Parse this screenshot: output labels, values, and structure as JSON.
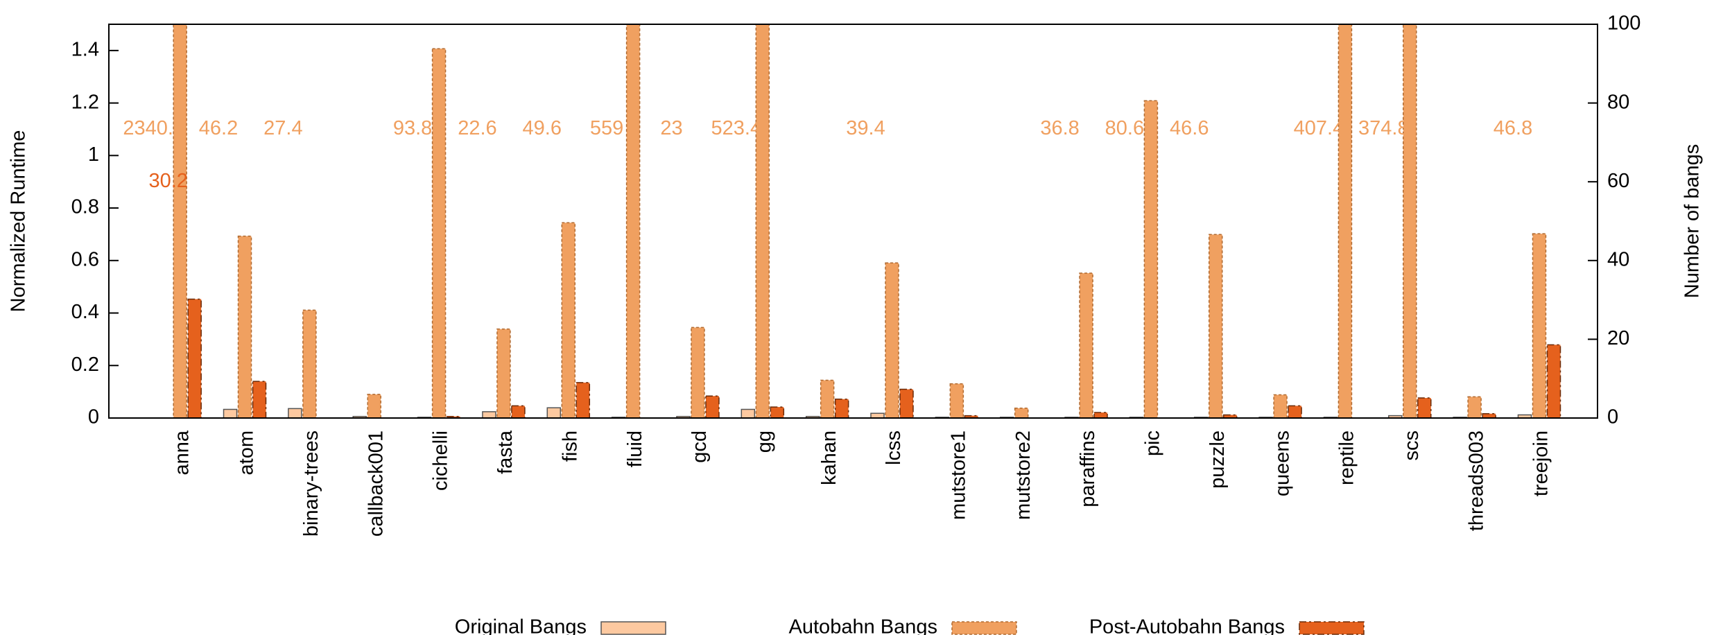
{
  "chart_data": {
    "type": "bar",
    "categories": [
      "anna",
      "atom",
      "binary-trees",
      "callback001",
      "cichelli",
      "fasta",
      "fish",
      "fluid",
      "gcd",
      "gg",
      "kahan",
      "lcss",
      "mutstore1",
      "mutstore2",
      "paraffins",
      "pic",
      "puzzle",
      "queens",
      "reptile",
      "scs",
      "threads003",
      "treejoin"
    ],
    "ylabel": "Normalized Runtime",
    "y2label": "Number of bangs",
    "ylim": [
      0,
      1.5
    ],
    "yticks": [
      0,
      0.2,
      0.4,
      0.6,
      0.8,
      1,
      1.2,
      1.4
    ],
    "y2lim": [
      0,
      100
    ],
    "y2ticks": [
      0,
      20,
      40,
      60,
      80,
      100
    ],
    "legend": "bottom",
    "series": [
      {
        "name": "Original Bangs",
        "color": "#fdc9a0",
        "axis": "y2",
        "values": [
          0,
          2.2,
          2.4,
          0.4,
          0.2,
          1.6,
          2.6,
          0.2,
          0.4,
          2.2,
          0.4,
          1.2,
          0.2,
          0.2,
          0.2,
          0.2,
          0.2,
          0.2,
          0.2,
          0.6,
          0.2,
          0.8
        ]
      },
      {
        "name": "Autobahn Bangs",
        "color": "#f0a060",
        "axis": "y2",
        "values": [
          2340.4,
          46.2,
          27.4,
          6,
          93.8,
          22.6,
          49.6,
          559,
          23,
          523.4,
          9.6,
          39.4,
          8.7,
          2.5,
          36.8,
          80.6,
          46.6,
          5.9,
          407.4,
          374.8,
          5.4,
          46.8
        ],
        "value_labels": [
          "2340.4",
          "46.2",
          "27.4",
          null,
          "93.8",
          "22.6",
          "49.6",
          "559",
          "23",
          "523.4",
          null,
          "39.4",
          null,
          null,
          "36.8",
          "80.6",
          "46.6",
          null,
          "407.4",
          "374.8",
          null,
          "46.8"
        ]
      },
      {
        "name": "Post-Autobahn Bangs",
        "color": "#e5611d",
        "axis": "y2",
        "values": [
          30.2,
          9.3,
          0,
          0,
          0.4,
          3.1,
          9,
          0,
          5.6,
          2.8,
          4.8,
          7.3,
          0.6,
          0,
          1.4,
          0,
          0.8,
          3.1,
          0,
          5.1,
          1.1,
          18.6
        ],
        "value_labels": [
          "30.2",
          null,
          null,
          null,
          null,
          null,
          null,
          null,
          null,
          null,
          null,
          null,
          null,
          null,
          null,
          null,
          null,
          null,
          null,
          null,
          null,
          null
        ]
      }
    ]
  }
}
